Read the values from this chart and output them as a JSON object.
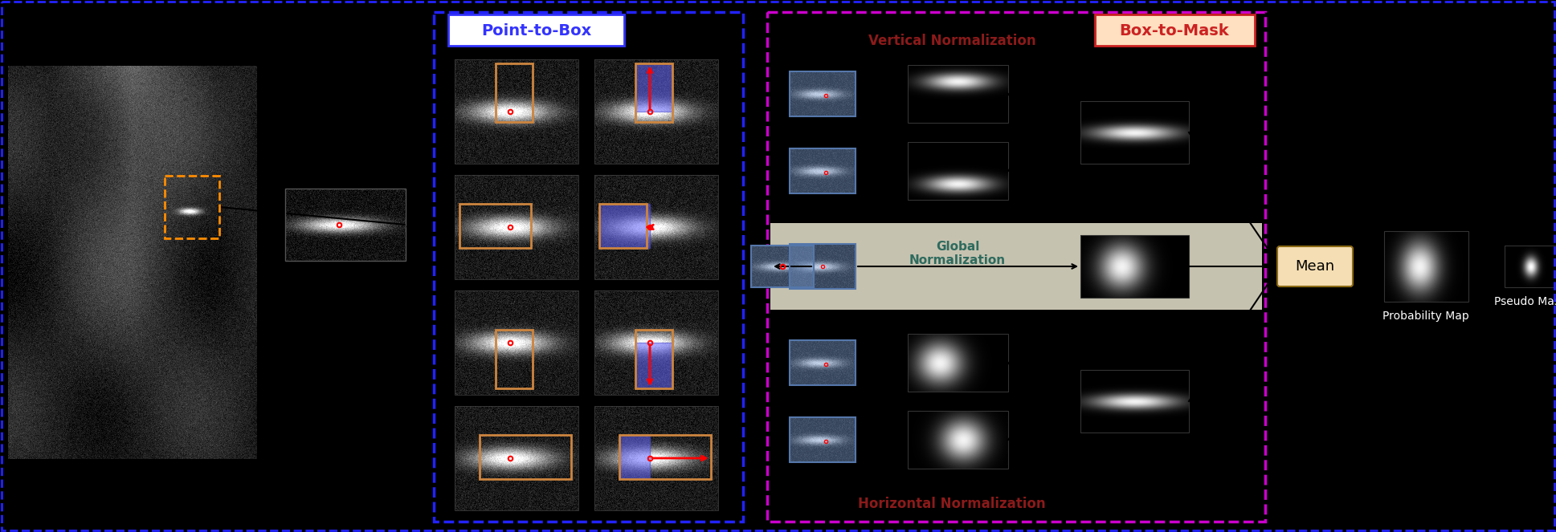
{
  "bg_color": "#000000",
  "fig_bg": "#000000",
  "section_ptb_label": "Point-to-Box",
  "section_ptb_color": "#3333ff",
  "section_b2m_label": "Box-to-Mask",
  "section_b2m_color": "#ff2222",
  "vert_norm_label": "Vertical Normalization",
  "vert_norm_color": "#8b1a1a",
  "horiz_norm_label": "Horizontal Normalization",
  "horiz_norm_color": "#8b1a1a",
  "global_norm_label": "Global\nNormalization",
  "global_norm_color": "#2e6b5e",
  "prob_map_label": "Probability Map",
  "pseudo_mask_label": "Pseudo Mask",
  "mean_label": "Mean"
}
